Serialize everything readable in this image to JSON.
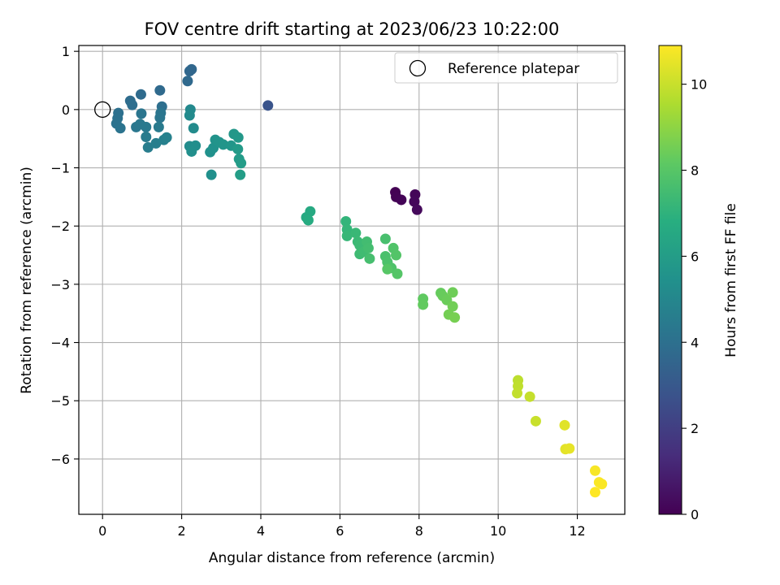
{
  "chart_data": {
    "type": "scatter",
    "title": "FOV centre drift starting at 2023/06/23 10:22:00",
    "xlabel": "Angular distance from reference (arcmin)",
    "ylabel": "Rotation from reference (arcmin)",
    "xlim": [
      -0.6,
      13.2
    ],
    "ylim": [
      -6.95,
      1.1
    ],
    "xticks": [
      0,
      2,
      4,
      6,
      8,
      10,
      12
    ],
    "yticks": [
      1,
      0,
      -1,
      -2,
      -3,
      -4,
      -5,
      -6
    ],
    "xtick_labels": [
      "0",
      "2",
      "4",
      "6",
      "8",
      "10",
      "12"
    ],
    "ytick_labels": [
      "1",
      "0",
      "−1",
      "−2",
      "−3",
      "−4",
      "−5",
      "−6"
    ],
    "grid": true,
    "legend": {
      "position": "upper right",
      "entries": [
        "Reference platepar"
      ]
    },
    "reference_point": {
      "x": 0,
      "y": 0
    },
    "colorbar": {
      "label": "Hours from first FF file",
      "range": [
        0,
        10.9
      ],
      "ticks": [
        0,
        2,
        4,
        6,
        8,
        10
      ],
      "tick_labels": [
        "0",
        "2",
        "4",
        "6",
        "8",
        "10"
      ],
      "colormap": "viridis"
    },
    "points": [
      {
        "x": 7.4,
        "y": -1.42,
        "h": 0.0
      },
      {
        "x": 7.42,
        "y": -1.5,
        "h": 0.05
      },
      {
        "x": 7.55,
        "y": -1.55,
        "h": 0.1
      },
      {
        "x": 7.9,
        "y": -1.46,
        "h": 0.15
      },
      {
        "x": 7.88,
        "y": -1.58,
        "h": 0.2
      },
      {
        "x": 7.95,
        "y": -1.72,
        "h": 0.25
      },
      {
        "x": 4.18,
        "y": 0.07,
        "h": 2.8
      },
      {
        "x": 2.2,
        "y": 0.66,
        "h": 3.6
      },
      {
        "x": 2.25,
        "y": 0.69,
        "h": 3.6
      },
      {
        "x": 2.15,
        "y": 0.49,
        "h": 3.7
      },
      {
        "x": 1.45,
        "y": 0.33,
        "h": 3.75
      },
      {
        "x": 0.97,
        "y": 0.26,
        "h": 3.8
      },
      {
        "x": 0.7,
        "y": 0.15,
        "h": 3.85
      },
      {
        "x": 0.75,
        "y": 0.08,
        "h": 3.9
      },
      {
        "x": 1.5,
        "y": 0.05,
        "h": 3.95
      },
      {
        "x": 0.4,
        "y": -0.06,
        "h": 4.0
      },
      {
        "x": 0.38,
        "y": -0.15,
        "h": 4.05
      },
      {
        "x": 0.35,
        "y": -0.24,
        "h": 4.1
      },
      {
        "x": 0.45,
        "y": -0.32,
        "h": 4.15
      },
      {
        "x": 0.98,
        "y": -0.07,
        "h": 4.2
      },
      {
        "x": 1.47,
        "y": -0.06,
        "h": 4.2
      },
      {
        "x": 1.45,
        "y": -0.14,
        "h": 4.25
      },
      {
        "x": 0.85,
        "y": -0.3,
        "h": 4.3
      },
      {
        "x": 0.95,
        "y": -0.25,
        "h": 4.35
      },
      {
        "x": 1.1,
        "y": -0.3,
        "h": 4.4
      },
      {
        "x": 1.42,
        "y": -0.3,
        "h": 4.45
      },
      {
        "x": 1.1,
        "y": -0.47,
        "h": 4.5
      },
      {
        "x": 1.15,
        "y": -0.65,
        "h": 4.55
      },
      {
        "x": 1.35,
        "y": -0.58,
        "h": 4.6
      },
      {
        "x": 1.55,
        "y": -0.52,
        "h": 4.7
      },
      {
        "x": 1.62,
        "y": -0.48,
        "h": 4.75
      },
      {
        "x": 2.22,
        "y": 0.0,
        "h": 5.1
      },
      {
        "x": 2.2,
        "y": -0.1,
        "h": 5.15
      },
      {
        "x": 2.3,
        "y": -0.32,
        "h": 5.2
      },
      {
        "x": 2.2,
        "y": -0.63,
        "h": 5.25
      },
      {
        "x": 2.35,
        "y": -0.62,
        "h": 5.3
      },
      {
        "x": 2.25,
        "y": -0.72,
        "h": 5.35
      },
      {
        "x": 2.75,
        "y": -1.12,
        "h": 5.4
      },
      {
        "x": 2.72,
        "y": -0.73,
        "h": 5.45
      },
      {
        "x": 2.8,
        "y": -0.66,
        "h": 5.5
      },
      {
        "x": 2.85,
        "y": -0.52,
        "h": 5.55
      },
      {
        "x": 2.95,
        "y": -0.56,
        "h": 5.6
      },
      {
        "x": 3.05,
        "y": -0.6,
        "h": 5.65
      },
      {
        "x": 3.25,
        "y": -0.62,
        "h": 5.7
      },
      {
        "x": 3.32,
        "y": -0.42,
        "h": 5.75
      },
      {
        "x": 3.43,
        "y": -0.48,
        "h": 5.8
      },
      {
        "x": 3.42,
        "y": -0.68,
        "h": 5.85
      },
      {
        "x": 3.45,
        "y": -0.85,
        "h": 5.9
      },
      {
        "x": 3.5,
        "y": -0.92,
        "h": 5.95
      },
      {
        "x": 3.48,
        "y": -1.12,
        "h": 6.0
      },
      {
        "x": 5.15,
        "y": -1.85,
        "h": 6.6
      },
      {
        "x": 5.25,
        "y": -1.75,
        "h": 6.6
      },
      {
        "x": 5.2,
        "y": -1.9,
        "h": 6.65
      },
      {
        "x": 6.15,
        "y": -1.92,
        "h": 7.1
      },
      {
        "x": 6.18,
        "y": -2.06,
        "h": 7.15
      },
      {
        "x": 6.18,
        "y": -2.17,
        "h": 7.2
      },
      {
        "x": 6.4,
        "y": -2.12,
        "h": 7.25
      },
      {
        "x": 6.45,
        "y": -2.27,
        "h": 7.3
      },
      {
        "x": 6.5,
        "y": -2.33,
        "h": 7.35
      },
      {
        "x": 6.5,
        "y": -2.48,
        "h": 7.4
      },
      {
        "x": 6.6,
        "y": -2.44,
        "h": 7.45
      },
      {
        "x": 6.68,
        "y": -2.27,
        "h": 7.5
      },
      {
        "x": 6.72,
        "y": -2.38,
        "h": 7.55
      },
      {
        "x": 6.75,
        "y": -2.56,
        "h": 7.6
      },
      {
        "x": 7.15,
        "y": -2.22,
        "h": 7.65
      },
      {
        "x": 7.15,
        "y": -2.52,
        "h": 7.7
      },
      {
        "x": 7.2,
        "y": -2.62,
        "h": 7.75
      },
      {
        "x": 7.3,
        "y": -2.72,
        "h": 7.8
      },
      {
        "x": 7.35,
        "y": -2.38,
        "h": 7.85
      },
      {
        "x": 7.42,
        "y": -2.5,
        "h": 7.9
      },
      {
        "x": 7.45,
        "y": -2.82,
        "h": 7.95
      },
      {
        "x": 7.2,
        "y": -2.74,
        "h": 8.0
      },
      {
        "x": 8.1,
        "y": -3.25,
        "h": 8.2
      },
      {
        "x": 8.1,
        "y": -3.35,
        "h": 8.25
      },
      {
        "x": 8.55,
        "y": -3.15,
        "h": 8.3
      },
      {
        "x": 8.6,
        "y": -3.2,
        "h": 8.35
      },
      {
        "x": 8.7,
        "y": -3.27,
        "h": 8.4
      },
      {
        "x": 8.85,
        "y": -3.14,
        "h": 8.45
      },
      {
        "x": 8.85,
        "y": -3.38,
        "h": 8.5
      },
      {
        "x": 8.75,
        "y": -3.52,
        "h": 8.55
      },
      {
        "x": 8.9,
        "y": -3.57,
        "h": 8.6
      },
      {
        "x": 10.5,
        "y": -4.65,
        "h": 9.8
      },
      {
        "x": 10.5,
        "y": -4.75,
        "h": 9.85
      },
      {
        "x": 10.48,
        "y": -4.87,
        "h": 9.9
      },
      {
        "x": 10.8,
        "y": -4.93,
        "h": 9.95
      },
      {
        "x": 10.95,
        "y": -5.35,
        "h": 10.0
      },
      {
        "x": 11.68,
        "y": -5.42,
        "h": 10.4
      },
      {
        "x": 11.7,
        "y": -5.83,
        "h": 10.45
      },
      {
        "x": 11.8,
        "y": -5.82,
        "h": 10.5
      },
      {
        "x": 12.45,
        "y": -6.2,
        "h": 10.8
      },
      {
        "x": 12.55,
        "y": -6.4,
        "h": 10.85
      },
      {
        "x": 12.62,
        "y": -6.43,
        "h": 10.85
      },
      {
        "x": 12.45,
        "y": -6.57,
        "h": 10.9
      }
    ]
  }
}
